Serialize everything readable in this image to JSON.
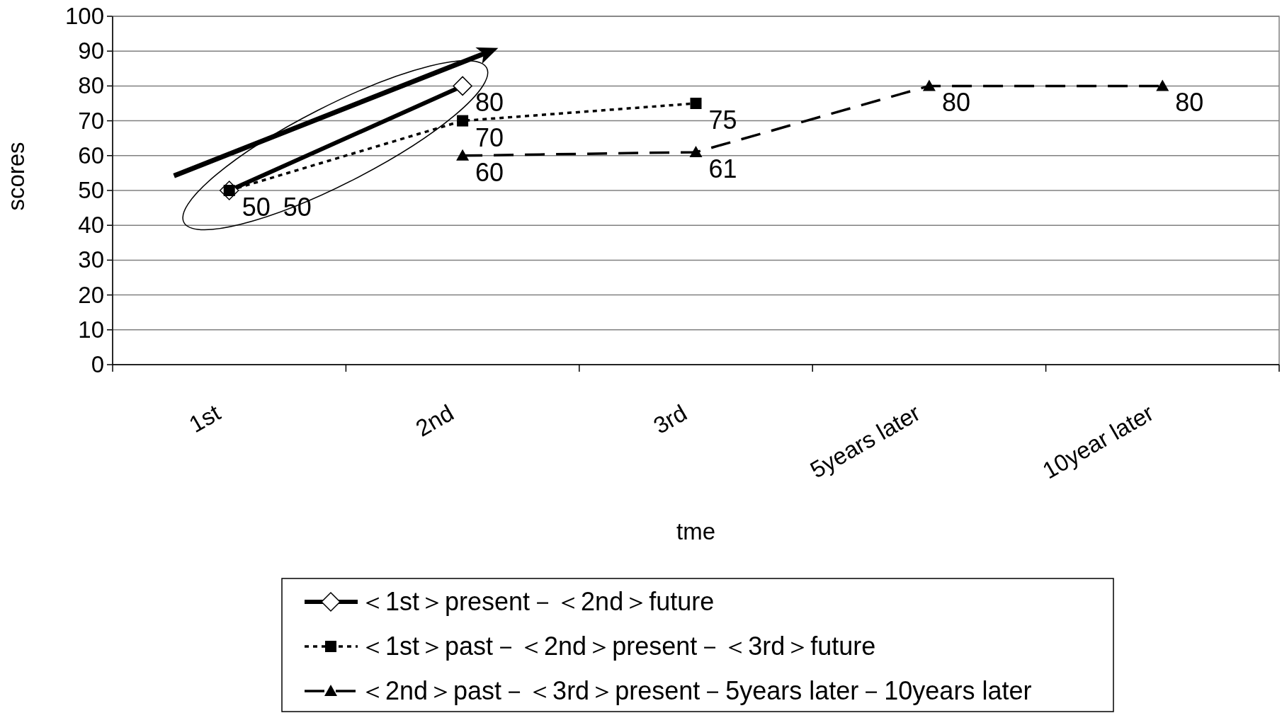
{
  "chart_data": {
    "type": "line",
    "xlabel": "tme",
    "ylabel": "scores",
    "categories": [
      "1st",
      "2nd",
      "3rd",
      "5years later",
      "10year later"
    ],
    "series": [
      {
        "name": "＜1st＞present－＜2nd＞future",
        "color": "#000000",
        "marker": "diamond",
        "line_style": "solid",
        "values": [
          50,
          80,
          null,
          null,
          null
        ]
      },
      {
        "name": "＜1st＞past－＜2nd＞present－＜3rd＞future",
        "color": "#000000",
        "marker": "square",
        "line_style": "dotted",
        "values": [
          50,
          70,
          75,
          null,
          null
        ]
      },
      {
        "name": "＜2nd＞past－＜3rd＞present－5years later－10years later",
        "color": "#000000",
        "marker": "triangle",
        "line_style": "dashed",
        "values": [
          null,
          60,
          61,
          80,
          80
        ]
      }
    ],
    "ylim": [
      0,
      100
    ],
    "yticks": [
      0,
      10,
      20,
      30,
      40,
      50,
      60,
      70,
      80,
      90,
      100
    ],
    "grid": "y",
    "legend": "bottom",
    "data_labels": true
  }
}
